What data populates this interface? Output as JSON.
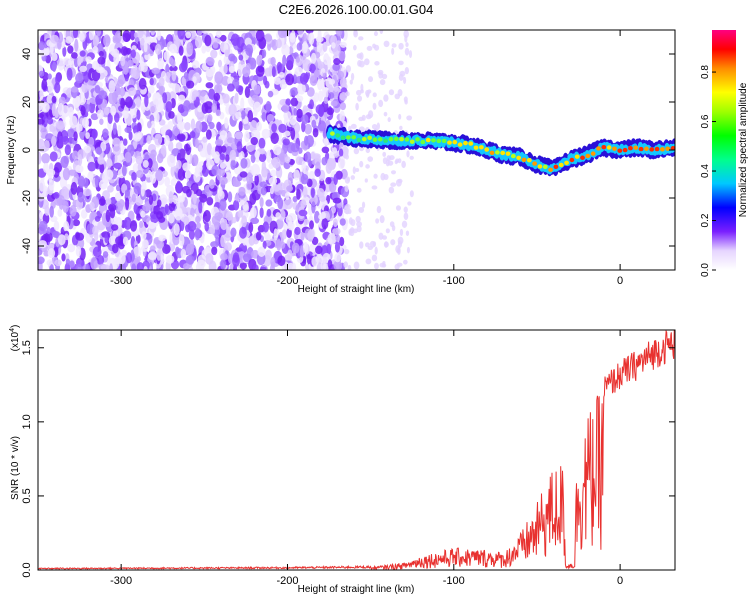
{
  "title": "C2E6.2026.100.00.01.G04",
  "chart_data": [
    {
      "type": "heatmap",
      "name": "spectrogram",
      "xlabel": "Height of straight line (km)",
      "ylabel": "Frequency (Hz)",
      "xlim": [
        -350,
        33
      ],
      "ylim": [
        -50,
        50
      ],
      "xticks": [
        -300,
        -200,
        -100,
        0
      ],
      "yticks": [
        -40,
        -20,
        0,
        20,
        40
      ],
      "xtick_labels": [
        "-300",
        "-200",
        "-100",
        "0"
      ],
      "ytick_labels": [
        "-40",
        "-20",
        "0",
        "20",
        "40"
      ],
      "noise_region_x": [
        -350,
        -165
      ],
      "signal_track": {
        "x": [
          -175,
          -160,
          -140,
          -120,
          -100,
          -90,
          -80,
          -70,
          -60,
          -50,
          -40,
          -30,
          -20,
          -10,
          0,
          10,
          20,
          33
        ],
        "y": [
          7,
          5,
          4,
          4,
          3,
          2,
          0,
          -2,
          -3,
          -6,
          -8,
          -4,
          -2,
          1,
          0,
          1,
          0,
          1
        ]
      },
      "colorbar": {
        "label": "Normalized spectral amplitude",
        "range": [
          0,
          0.97
        ],
        "ticks": [
          0.0,
          0.2,
          0.4,
          0.6,
          0.8
        ],
        "tick_labels": [
          "0.0",
          "0.2",
          "0.4",
          "0.6",
          "0.8"
        ]
      }
    },
    {
      "type": "line",
      "name": "snr",
      "xlabel": "Height of straight line (km)",
      "ylabel": "SNR (10 * v/v)",
      "multiplier_label": "(x10",
      "multiplier_exp": "4",
      "multiplier_close": ")",
      "xlim": [
        -350,
        33
      ],
      "ylim": [
        0,
        1.62
      ],
      "xticks": [
        -300,
        -200,
        -100,
        0
      ],
      "yticks": [
        0.0,
        0.5,
        1.0,
        1.5
      ],
      "xtick_labels": [
        "-300",
        "-200",
        "-100",
        "0"
      ],
      "ytick_labels": [
        "0.0",
        "0.5",
        "1.0",
        "1.5"
      ],
      "color": "#e8312f",
      "envelope": {
        "x": [
          -350,
          -200,
          -150,
          -130,
          -120,
          -100,
          -80,
          -70,
          -60,
          -50,
          -45,
          -40,
          -35,
          -30,
          -25,
          -20,
          -15,
          -10,
          -5,
          0,
          10,
          20,
          33
        ],
        "y": [
          0.01,
          0.015,
          0.02,
          0.05,
          0.1,
          0.15,
          0.14,
          0.12,
          0.25,
          0.45,
          0.6,
          0.7,
          0.75,
          0.02,
          0.85,
          1.05,
          1.15,
          1.25,
          1.3,
          1.35,
          1.42,
          1.5,
          1.58
        ]
      }
    }
  ]
}
